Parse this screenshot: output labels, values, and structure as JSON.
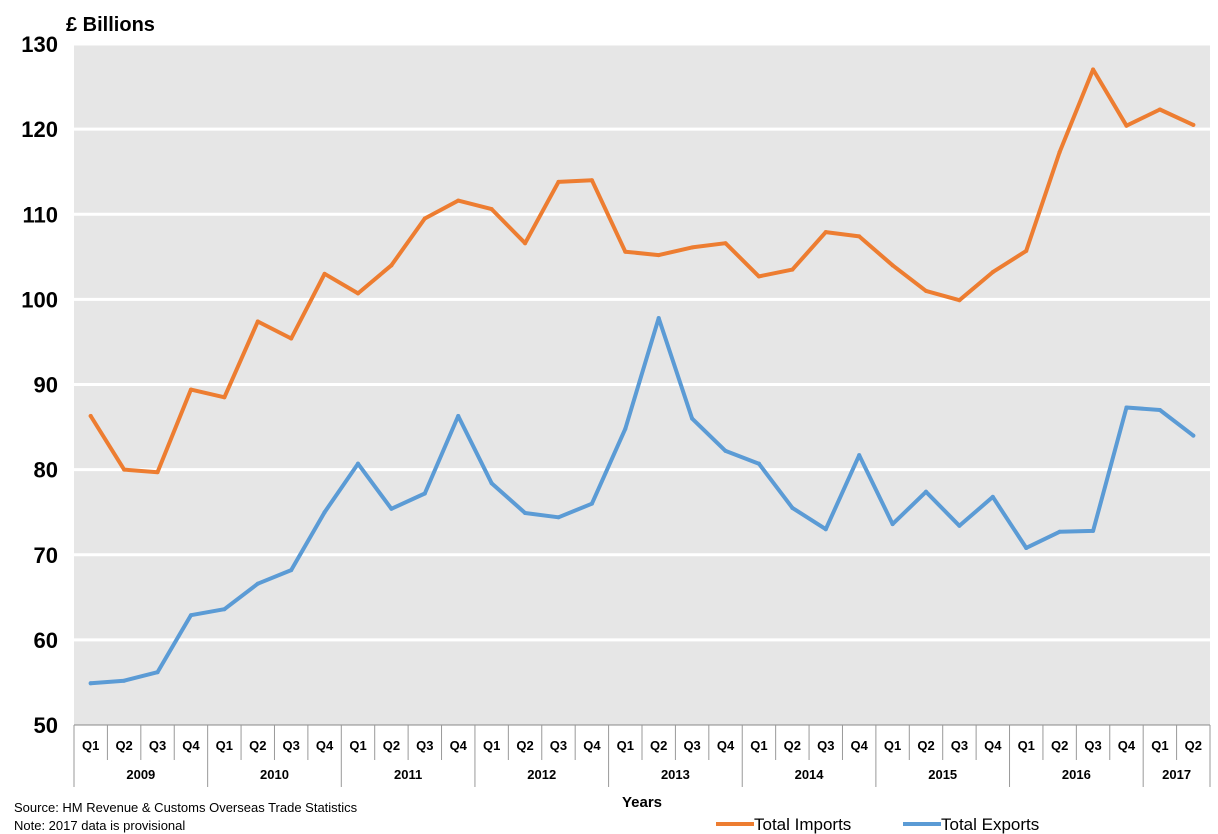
{
  "chart_data": {
    "type": "line",
    "ylabel": "£ Billions",
    "xlabel": "Years",
    "ylim": [
      50,
      130
    ],
    "yticks": [
      50,
      60,
      70,
      80,
      90,
      100,
      110,
      120,
      130
    ],
    "grid": true,
    "legend_position": "bottom-right",
    "categories": [
      "Q1",
      "Q2",
      "Q3",
      "Q4",
      "Q1",
      "Q2",
      "Q3",
      "Q4",
      "Q1",
      "Q2",
      "Q3",
      "Q4",
      "Q1",
      "Q2",
      "Q3",
      "Q4",
      "Q1",
      "Q2",
      "Q3",
      "Q4",
      "Q1",
      "Q2",
      "Q3",
      "Q4",
      "Q1",
      "Q2",
      "Q3",
      "Q4",
      "Q1",
      "Q2",
      "Q3",
      "Q4",
      "Q1",
      "Q2"
    ],
    "years": [
      {
        "label": "2009",
        "quarters": 4
      },
      {
        "label": "2010",
        "quarters": 4
      },
      {
        "label": "2011",
        "quarters": 4
      },
      {
        "label": "2012",
        "quarters": 4
      },
      {
        "label": "2013",
        "quarters": 4
      },
      {
        "label": "2014",
        "quarters": 4
      },
      {
        "label": "2015",
        "quarters": 4
      },
      {
        "label": "2016",
        "quarters": 4
      },
      {
        "label": "2017",
        "quarters": 2
      }
    ],
    "series": [
      {
        "name": "Total Imports",
        "color": "#ed7d31",
        "values": [
          86.3,
          80.0,
          79.7,
          89.4,
          88.5,
          97.4,
          95.4,
          103.0,
          100.7,
          104.0,
          109.5,
          111.6,
          110.6,
          106.6,
          113.8,
          114.0,
          105.6,
          105.2,
          106.1,
          106.6,
          102.7,
          103.5,
          107.9,
          107.4,
          104.0,
          101.0,
          99.9,
          103.2,
          105.7,
          117.3,
          127.0,
          120.4,
          122.3,
          120.5
        ]
      },
      {
        "name": "Total Exports",
        "color": "#5b9bd5",
        "values": [
          54.9,
          55.2,
          56.2,
          62.9,
          63.6,
          66.6,
          68.2,
          75.0,
          80.7,
          75.4,
          77.2,
          86.3,
          78.4,
          74.9,
          74.4,
          76.0,
          84.8,
          97.8,
          86.0,
          82.2,
          80.7,
          75.5,
          73.0,
          81.7,
          73.6,
          77.4,
          73.4,
          76.8,
          70.8,
          72.7,
          72.8,
          87.3,
          87.0,
          84.0
        ]
      }
    ]
  },
  "footer": {
    "source": "Source: HM Revenue & Customs Overseas Trade Statistics",
    "note": "Note: 2017 data is provisional"
  }
}
